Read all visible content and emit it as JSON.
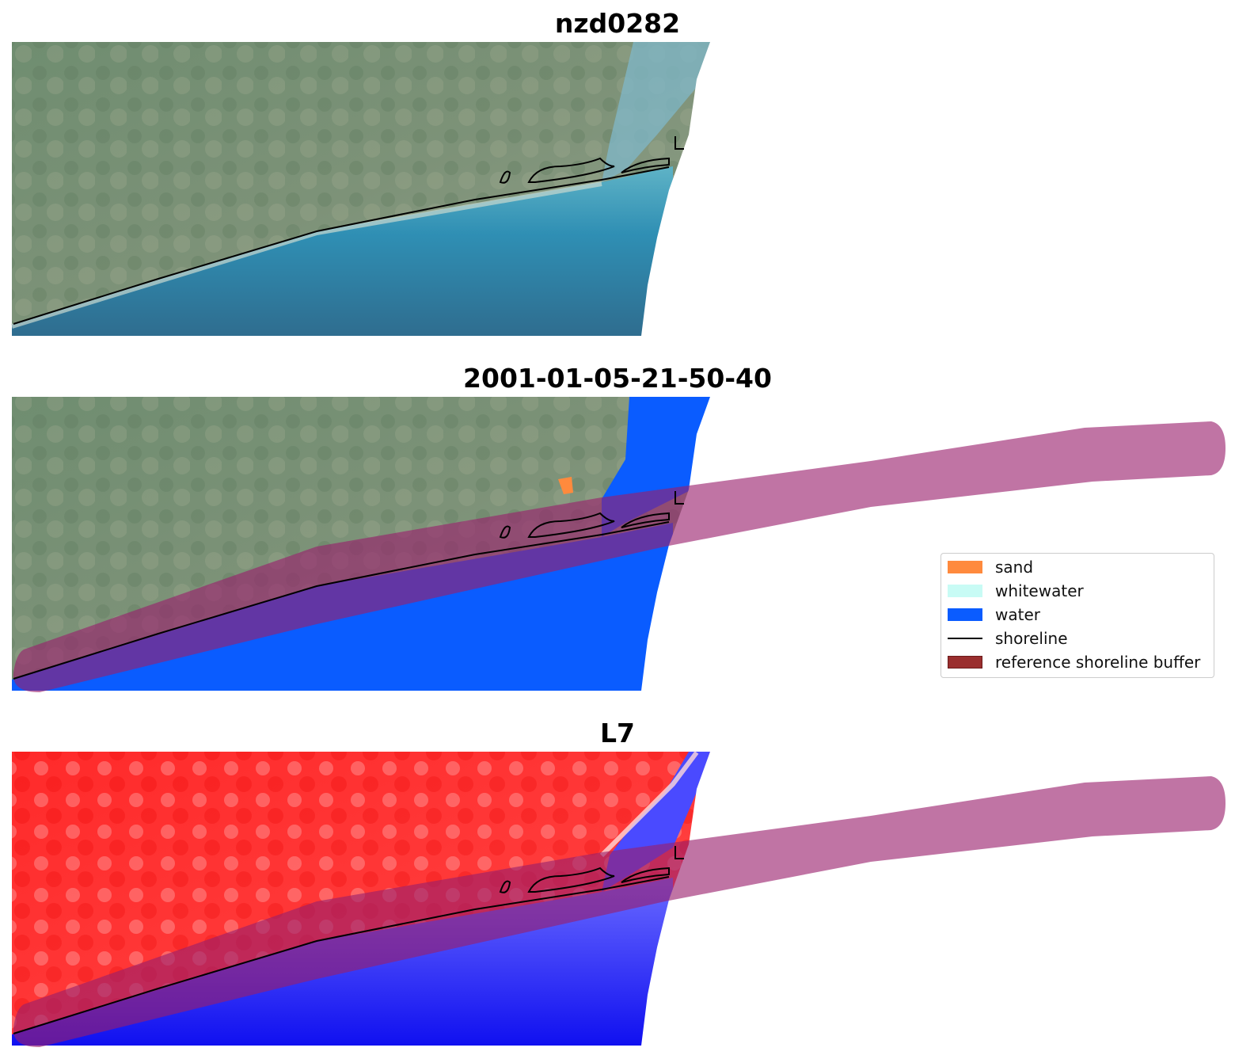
{
  "panels": [
    {
      "title": "nzd0282",
      "kind": "rgb"
    },
    {
      "title": "2001-01-05-21-50-40",
      "kind": "classified"
    },
    {
      "title": "L7",
      "kind": "mndwi"
    }
  ],
  "legend": {
    "items": [
      {
        "label": "sand",
        "color": "#ff8a3d",
        "kind": "patch"
      },
      {
        "label": "whitewater",
        "color": "#c8fbf5",
        "kind": "patch"
      },
      {
        "label": "water",
        "color": "#0a5cff",
        "kind": "patch"
      },
      {
        "label": "shoreline",
        "color": "#000000",
        "kind": "line"
      },
      {
        "label": "reference shoreline buffer",
        "color": "#9a2e2e",
        "kind": "patch"
      }
    ]
  },
  "colors": {
    "land_green": "#6e8a6c",
    "sea_blue": "#2d7fa3",
    "buffer": "#b55a8e",
    "index_red": "#ff1a1a",
    "index_blue": "#1a1aff"
  }
}
